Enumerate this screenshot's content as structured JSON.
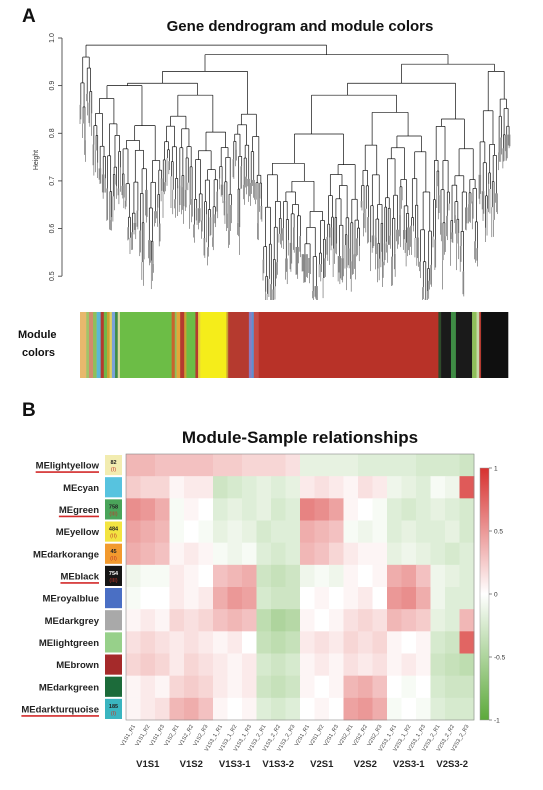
{
  "panel_a": {
    "letter": "A",
    "title": "Gene dendrogram and module colors",
    "ylabel": "Height",
    "module_label_line1": "Module",
    "module_label_line2": "colors"
  },
  "panel_b": {
    "letter": "B",
    "title": "Module-Sample relationships"
  },
  "chart_data": [
    {
      "type": "dendrogram",
      "title": "Gene dendrogram and module colors",
      "ylabel": "Height",
      "y_ticks": [
        0.5,
        0.6,
        0.7,
        0.8,
        0.9,
        1.0
      ],
      "ylim": [
        0.45,
        1.0
      ],
      "module_colors": [
        {
          "color": "#e8b86d",
          "w": 1.4
        },
        {
          "color": "#a0c46a",
          "w": 0.6
        },
        {
          "color": "#d28a6e",
          "w": 0.9
        },
        {
          "color": "#8fbf5a",
          "w": 0.8
        },
        {
          "color": "#5bb8d6",
          "w": 0.9
        },
        {
          "color": "#b53a2f",
          "w": 0.7
        },
        {
          "color": "#6fb84a",
          "w": 0.7
        },
        {
          "color": "#c9a233",
          "w": 0.6
        },
        {
          "color": "#e0d060",
          "w": 0.5
        },
        {
          "color": "#7aa2d8",
          "w": 0.7
        },
        {
          "color": "#3f8c45",
          "w": 0.6
        },
        {
          "color": "#d7d8a0",
          "w": 0.5
        },
        {
          "color": "#6cbd46",
          "w": 11.5
        },
        {
          "color": "#c8642e",
          "w": 0.7
        },
        {
          "color": "#8fbf5a",
          "w": 0.4
        },
        {
          "color": "#e2a63a",
          "w": 0.8
        },
        {
          "color": "#b53a2f",
          "w": 0.9
        },
        {
          "color": "#c9a233",
          "w": 0.5
        },
        {
          "color": "#6cbd46",
          "w": 2.0
        },
        {
          "color": "#b53a2f",
          "w": 0.6
        },
        {
          "color": "#e7d33e",
          "w": 0.5
        },
        {
          "color": "#f5ed1a",
          "w": 5.8
        },
        {
          "color": "#c9a233",
          "w": 0.4
        },
        {
          "color": "#b53a2f",
          "w": 4.6
        },
        {
          "color": "#8d7bc0",
          "w": 0.6
        },
        {
          "color": "#5d8fd0",
          "w": 0.5
        },
        {
          "color": "#c64b45",
          "w": 1.1
        },
        {
          "color": "#b83228",
          "w": 40.0
        },
        {
          "color": "#2e4a2a",
          "w": 0.6
        },
        {
          "color": "#1a1a1a",
          "w": 2.2
        },
        {
          "color": "#3f8c45",
          "w": 1.1
        },
        {
          "color": "#1a1a1a",
          "w": 3.6
        },
        {
          "color": "#8fbf5a",
          "w": 1.0
        },
        {
          "color": "#c6d9a8",
          "w": 0.6
        },
        {
          "color": "#b53a2f",
          "w": 0.4
        },
        {
          "color": "#0f0f0f",
          "w": 6.0
        }
      ]
    },
    {
      "type": "heatmap",
      "title": "Module-Sample relationships",
      "rows": [
        {
          "name": "MElightyellow",
          "count_top": "82",
          "count_bottom": "(I)",
          "swatch": "#f2ecb0",
          "underline": true
        },
        {
          "name": "MEcyan",
          "count_top": "",
          "count_bottom": "",
          "swatch": "#57c3df",
          "underline": false
        },
        {
          "name": "MEgreen",
          "count_top": "758",
          "count_bottom": "(III)",
          "swatch": "#4aa55a",
          "underline": true
        },
        {
          "name": "MEyellow",
          "count_top": "484",
          "count_bottom": "(II)",
          "swatch": "#f3e441",
          "underline": false
        },
        {
          "name": "MEdarkorange",
          "count_top": "45",
          "count_bottom": "(II)",
          "swatch": "#f29a2e",
          "underline": false
        },
        {
          "name": "MEblack",
          "count_top": "754",
          "count_bottom": "(III)",
          "swatch": "#151515",
          "underline": true
        },
        {
          "name": "MEroyalblue",
          "count_top": "",
          "count_bottom": "",
          "swatch": "#4a6fc4",
          "underline": false
        },
        {
          "name": "MEdarkgrey",
          "count_top": "",
          "count_bottom": "",
          "swatch": "#a9a9a9",
          "underline": false
        },
        {
          "name": "MElightgreen",
          "count_top": "",
          "count_bottom": "",
          "swatch": "#97d08a",
          "underline": false
        },
        {
          "name": "MEbrown",
          "count_top": "",
          "count_bottom": "",
          "swatch": "#a52a2a",
          "underline": false
        },
        {
          "name": "MEdarkgreen",
          "count_top": "",
          "count_bottom": "",
          "swatch": "#1c6b3a",
          "underline": false
        },
        {
          "name": "MEdarkturquoise",
          "count_top": "185",
          "count_bottom": "(I)",
          "swatch": "#3ab5c0",
          "underline": true
        }
      ],
      "columns": [
        "V1S1_R1",
        "V1S1_R2",
        "V1S1_R3",
        "V1S2_R1",
        "V1S2_R2",
        "V1S2_R3",
        "V1S3_1_R1",
        "V1S3_1_R2",
        "V1S3_1_R3",
        "V1S3_2_R1",
        "V1S3_2_R2",
        "V1S3_2_R3",
        "V2S1_R1",
        "V2S1_R2",
        "V2S1_R3",
        "V2S2_R1",
        "V2S2_R2",
        "V2S2_R3",
        "V2S3_1_R1",
        "V2S3_1_R2",
        "V2S3_1_R3",
        "V2S3_2_R1",
        "V2S3_2_R2",
        "V2S3_2_R3"
      ],
      "groups": [
        "V1S1",
        "V1S2",
        "V1S3-1",
        "V1S3-2",
        "V2S1",
        "V2S2",
        "V2S3-1",
        "V2S3-2"
      ],
      "values": [
        [
          0.35,
          0.35,
          0.3,
          0.3,
          0.3,
          0.3,
          0.25,
          0.25,
          0.2,
          0.2,
          0.2,
          0.15,
          -0.15,
          -0.15,
          -0.15,
          -0.15,
          -0.2,
          -0.2,
          -0.2,
          -0.2,
          -0.25,
          -0.25,
          -0.25,
          -0.3
        ],
        [
          0.25,
          0.2,
          0.2,
          0.05,
          0.1,
          0.1,
          -0.3,
          -0.25,
          -0.2,
          -0.15,
          -0.2,
          -0.15,
          0.1,
          0.15,
          0.1,
          0.05,
          0.15,
          0.1,
          -0.1,
          -0.15,
          -0.2,
          -0.05,
          -0.1,
          0.8
        ],
        [
          0.55,
          0.5,
          0.4,
          -0.05,
          0.05,
          0.0,
          -0.2,
          -0.15,
          -0.2,
          -0.15,
          -0.25,
          -0.2,
          0.6,
          0.55,
          0.45,
          0.05,
          0.0,
          -0.05,
          -0.2,
          -0.25,
          -0.2,
          -0.15,
          -0.2,
          -0.25
        ],
        [
          0.45,
          0.4,
          0.35,
          -0.05,
          0.0,
          -0.05,
          -0.15,
          -0.1,
          -0.15,
          -0.25,
          -0.2,
          -0.2,
          0.4,
          0.35,
          0.3,
          -0.05,
          -0.1,
          -0.05,
          -0.2,
          -0.15,
          -0.2,
          -0.2,
          -0.15,
          -0.25
        ],
        [
          0.4,
          0.35,
          0.3,
          0.05,
          0.1,
          0.05,
          -0.05,
          -0.1,
          -0.05,
          -0.2,
          -0.25,
          -0.2,
          0.35,
          0.3,
          0.2,
          0.1,
          0.05,
          0.05,
          -0.15,
          -0.1,
          -0.15,
          -0.2,
          -0.25,
          -0.2
        ],
        [
          -0.1,
          -0.05,
          -0.05,
          0.1,
          0.05,
          0.0,
          0.3,
          0.35,
          0.4,
          -0.3,
          -0.35,
          -0.3,
          -0.1,
          -0.05,
          -0.1,
          0.05,
          0.0,
          0.05,
          0.4,
          0.45,
          0.3,
          -0.1,
          -0.15,
          -0.2
        ],
        [
          -0.05,
          0.0,
          0.0,
          0.1,
          0.05,
          0.1,
          0.4,
          0.5,
          0.45,
          -0.25,
          -0.3,
          -0.3,
          0.0,
          0.05,
          0.0,
          0.05,
          0.1,
          0.0,
          0.5,
          0.55,
          0.4,
          -0.1,
          -0.2,
          -0.2
        ],
        [
          0.05,
          0.1,
          0.05,
          0.2,
          0.15,
          0.2,
          0.3,
          0.35,
          0.3,
          -0.4,
          -0.5,
          -0.45,
          0.05,
          0.0,
          0.05,
          0.15,
          0.2,
          0.15,
          0.35,
          0.3,
          0.25,
          -0.15,
          -0.2,
          0.35
        ],
        [
          0.15,
          0.2,
          0.15,
          0.1,
          0.15,
          0.1,
          0.05,
          0.1,
          0.0,
          -0.35,
          -0.4,
          -0.35,
          0.1,
          0.15,
          0.1,
          0.2,
          0.15,
          0.2,
          0.05,
          0.0,
          0.05,
          -0.25,
          -0.3,
          0.75
        ],
        [
          0.2,
          0.25,
          0.2,
          0.1,
          0.2,
          0.15,
          0.1,
          0.05,
          0.1,
          -0.25,
          -0.3,
          -0.25,
          0.05,
          0.1,
          0.05,
          0.15,
          0.1,
          0.15,
          0.05,
          0.1,
          0.05,
          -0.3,
          -0.35,
          -0.4
        ],
        [
          0.05,
          0.1,
          0.05,
          0.2,
          0.25,
          0.2,
          0.1,
          0.05,
          0.1,
          -0.3,
          -0.35,
          -0.3,
          0.05,
          0.0,
          0.05,
          0.35,
          0.4,
          0.3,
          0.0,
          -0.05,
          0.0,
          -0.25,
          -0.3,
          -0.3
        ],
        [
          0.05,
          0.1,
          0.15,
          0.35,
          0.4,
          0.3,
          0.05,
          0.0,
          0.05,
          -0.2,
          -0.25,
          -0.2,
          0.0,
          0.05,
          0.0,
          0.45,
          0.5,
          0.4,
          -0.05,
          0.0,
          -0.05,
          -0.2,
          -0.25,
          -0.25
        ]
      ],
      "colorbar": {
        "range": [
          -1,
          1
        ],
        "ticks": [
          "1",
          "0.5",
          "0",
          "-0.5",
          "-1"
        ]
      }
    }
  ]
}
